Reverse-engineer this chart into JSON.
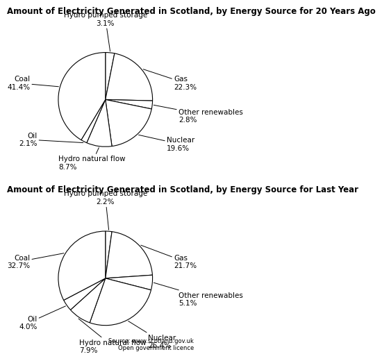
{
  "chart1": {
    "title": "Amount of Electricity Generated in Scotland, by Energy Source for 20 Years Ago",
    "labels": [
      "Hydro pumped storage",
      "Gas",
      "Other renewables",
      "Nuclear",
      "Hydro natural flow",
      "Oil",
      "Coal"
    ],
    "values": [
      3.1,
      22.3,
      2.8,
      19.6,
      8.7,
      2.1,
      41.4
    ],
    "label_offsets": [
      [
        0.0,
        1.55,
        "center",
        "bottom"
      ],
      [
        1.45,
        0.35,
        "left",
        "center"
      ],
      [
        1.55,
        -0.35,
        "left",
        "center"
      ],
      [
        1.3,
        -0.95,
        "left",
        "center"
      ],
      [
        -1.0,
        -1.35,
        "left",
        "center"
      ],
      [
        -1.45,
        -0.85,
        "right",
        "center"
      ],
      [
        -1.6,
        0.35,
        "right",
        "center"
      ]
    ]
  },
  "chart2": {
    "title": "Amount of Electricity Generated in Scotland, by Energy Source for Last Year",
    "labels": [
      "Hydro pumped storage",
      "Gas",
      "Other renewables",
      "Nuclear",
      "Hydro natural flow",
      "Oil",
      "Coal"
    ],
    "values": [
      2.2,
      21.7,
      5.1,
      26.4,
      7.9,
      4.0,
      32.7
    ],
    "label_offsets": [
      [
        0.0,
        1.55,
        "center",
        "bottom"
      ],
      [
        1.45,
        0.35,
        "left",
        "center"
      ],
      [
        1.55,
        -0.45,
        "left",
        "center"
      ],
      [
        0.9,
        -1.35,
        "left",
        "center"
      ],
      [
        -0.55,
        -1.45,
        "left",
        "center"
      ],
      [
        -1.45,
        -0.95,
        "right",
        "center"
      ],
      [
        -1.6,
        0.35,
        "right",
        "center"
      ]
    ]
  },
  "source_text": "Source: www.scotland.gov.uk\nOpen government licence",
  "bg_color": "#ffffff",
  "edge_color": "#000000",
  "text_color": "#000000",
  "title_fontsize": 8.5,
  "label_fontsize": 7.5,
  "source_fontsize": 6.0
}
